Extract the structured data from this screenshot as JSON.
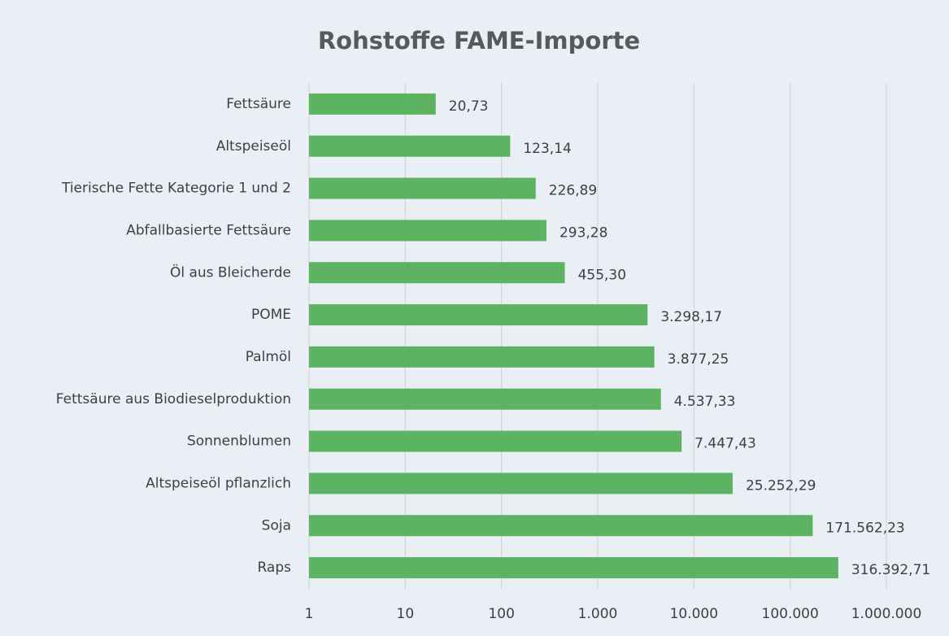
{
  "chart_data": {
    "type": "barh",
    "title": "Rohstoffe FAME-Importe",
    "categories": [
      "Fettsäure",
      "Altspeiseöl",
      "Tierische Fette Kategorie 1 und 2",
      "Abfallbasierte Fettsäure",
      "Öl aus Bleicherde",
      "POME",
      "Palmöl",
      "Fettsäure aus Biodieselproduktion",
      "Sonnenblumen",
      "Altspeiseöl pflanzlich",
      "Soja",
      "Raps"
    ],
    "values": [
      20.73,
      123.14,
      226.89,
      293.28,
      455.3,
      3298.17,
      3877.25,
      4537.33,
      7447.43,
      25252.29,
      171562.23,
      316392.71
    ],
    "value_labels": [
      "20,73",
      "123,14",
      "226,89",
      "293,28",
      "455,30",
      "3.298,17",
      "3.877,25",
      "4.537,33",
      "7.447,43",
      "25.252,29",
      "171.562,23",
      "316.392,71"
    ],
    "color": "#5cb361",
    "xscale": "log",
    "xlim": [
      1,
      1000000
    ],
    "xticks": [
      1,
      10,
      100,
      {
        "value": 1000,
        "label": "1.000"
      },
      {
        "value": 10000,
        "label": "10.000"
      },
      {
        "value": 100000,
        "label": "100.000"
      },
      {
        "value": 1000000,
        "label": "1.000.000"
      }
    ],
    "grid": true
  }
}
